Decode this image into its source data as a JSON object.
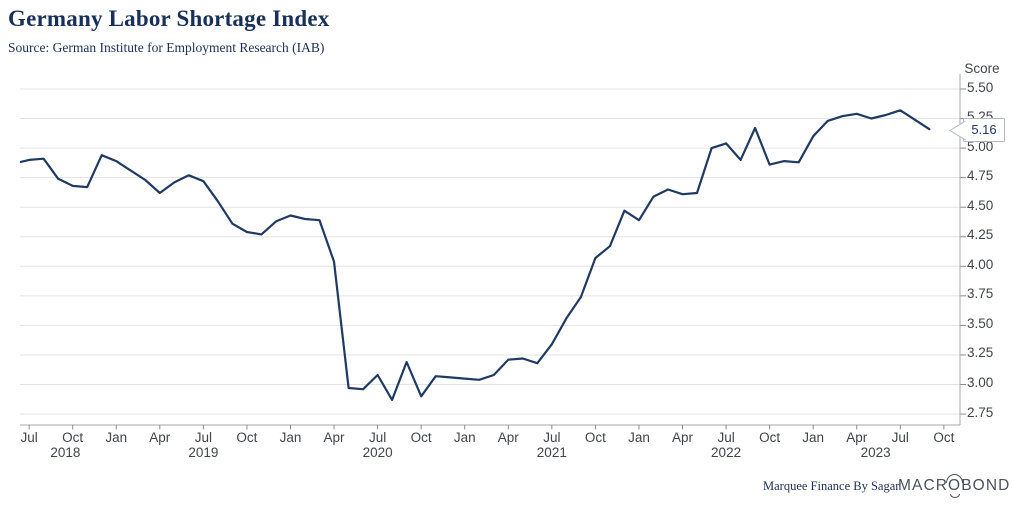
{
  "header": {
    "title": "Germany Labor Shortage Index",
    "source": "Source: German Institute for Employment Research (IAB)"
  },
  "footer": {
    "credit": "Marquee Finance By Sagar",
    "logo_pre": "MACR",
    "logo_o": "O",
    "logo_post": "BOND"
  },
  "colors": {
    "line": "#1f3a63",
    "title_navy": "#18315a",
    "tick_text": "#414549",
    "gridline": "#e3e3e3",
    "axis": "#a9a9a9",
    "callout_border": "#b3bac6"
  },
  "chart_data": {
    "type": "line",
    "title": "Germany Labor Shortage Index",
    "source": "German Institute for Employment Research (IAB)",
    "xlabel": "",
    "ylabel": "Score",
    "ylim": [
      2.75,
      5.5
    ],
    "grid": "horizontal",
    "legend": "none",
    "last_value_label": "5.16",
    "ytick_labels": [
      "5.50",
      "5.25",
      "5.00",
      "4.75",
      "4.50",
      "4.25",
      "4.00",
      "3.75",
      "3.50",
      "3.25",
      "3.00",
      "2.75"
    ],
    "xtick_months": [
      "Jul",
      "Oct",
      "Jan",
      "Apr",
      "Jul",
      "Oct",
      "Jan",
      "Apr",
      "Jul",
      "Oct",
      "Jan",
      "Apr",
      "Jul",
      "Oct",
      "Jan",
      "Apr",
      "Jul",
      "Oct",
      "Jan",
      "Apr",
      "Jul",
      "Oct"
    ],
    "xtick_years": [
      {
        "label": "2018",
        "x_month_index": 3.5
      },
      {
        "label": "2019",
        "x_month_index": 13
      },
      {
        "label": "2020",
        "x_month_index": 25
      },
      {
        "label": "2021",
        "x_month_index": 37
      },
      {
        "label": "2022",
        "x_month_index": 49
      },
      {
        "label": "2023",
        "x_month_index": 59.3
      }
    ],
    "x": [
      "2018-06",
      "2018-07",
      "2018-08",
      "2018-09",
      "2018-10",
      "2018-11",
      "2018-12",
      "2019-01",
      "2019-02",
      "2019-03",
      "2019-04",
      "2019-05",
      "2019-06",
      "2019-07",
      "2019-08",
      "2019-09",
      "2019-10",
      "2019-11",
      "2019-12",
      "2020-01",
      "2020-02",
      "2020-03",
      "2020-04",
      "2020-05",
      "2020-06",
      "2020-07",
      "2020-08",
      "2020-09",
      "2020-10",
      "2020-11",
      "2020-12",
      "2021-01",
      "2021-02",
      "2021-03",
      "2021-04",
      "2021-05",
      "2021-06",
      "2021-07",
      "2021-08",
      "2021-09",
      "2021-10",
      "2021-11",
      "2021-12",
      "2022-01",
      "2022-02",
      "2022-03",
      "2022-04",
      "2022-05",
      "2022-06",
      "2022-07",
      "2022-08",
      "2022-09",
      "2022-10",
      "2022-11",
      "2022-12",
      "2023-01",
      "2023-02",
      "2023-03",
      "2023-04",
      "2023-05",
      "2023-06",
      "2023-07",
      "2023-08",
      "2023-09"
    ],
    "series": [
      {
        "name": "Germany Labor Shortage Index",
        "color": "#1f3a63",
        "values": [
          4.87,
          4.9,
          4.91,
          4.74,
          4.68,
          4.67,
          4.94,
          4.89,
          4.81,
          4.73,
          4.62,
          4.71,
          4.77,
          4.72,
          4.55,
          4.36,
          4.29,
          4.27,
          4.38,
          4.43,
          4.4,
          4.39,
          4.04,
          2.97,
          2.96,
          3.08,
          2.87,
          3.19,
          2.9,
          3.07,
          3.06,
          3.05,
          3.04,
          3.08,
          3.21,
          3.22,
          3.18,
          3.34,
          3.56,
          3.74,
          4.07,
          4.17,
          4.47,
          4.39,
          4.59,
          4.65,
          4.61,
          4.62,
          5.0,
          5.04,
          4.9,
          5.17,
          4.86,
          4.89,
          4.88,
          5.1,
          5.23,
          5.27,
          5.29,
          5.25,
          5.28,
          5.32,
          5.24,
          5.16
        ]
      }
    ]
  }
}
